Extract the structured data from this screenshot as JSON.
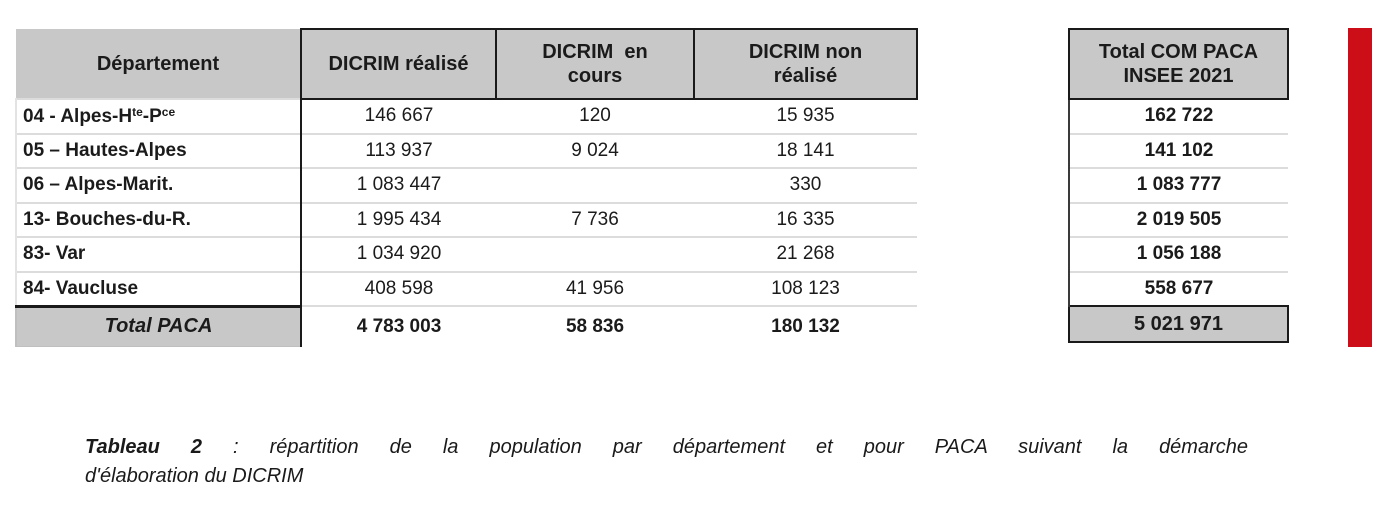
{
  "colors": {
    "accent_red": "#cb0e17",
    "header_gray": "#c8c8c8",
    "row_separator": "#dcdcdc",
    "text": "#1b1b1b"
  },
  "main_table": {
    "columns": [
      {
        "label_lines": [
          "Département"
        ]
      },
      {
        "label_lines": [
          "DICRIM réalisé"
        ]
      },
      {
        "label_lines": [
          "DICRIM  en",
          "cours"
        ]
      },
      {
        "label_lines": [
          "DICRIM non",
          "réalisé"
        ]
      }
    ],
    "rows": [
      {
        "dept_parts": [
          {
            "t": "04 - Alpes-H"
          },
          {
            "t": "te",
            "sup": true
          },
          {
            "t": "-P"
          },
          {
            "t": "ce",
            "sup": true
          }
        ],
        "realise": "146 667",
        "en_cours": "120",
        "non_realise": "15 935"
      },
      {
        "dept_parts": [
          {
            "t": "05 – Hautes-Alpes"
          }
        ],
        "realise": "113 937",
        "en_cours": "9 024",
        "non_realise": "18 141"
      },
      {
        "dept_parts": [
          {
            "t": "06 – Alpes-Marit."
          }
        ],
        "realise": "1 083 447",
        "en_cours": "",
        "non_realise": "330"
      },
      {
        "dept_parts": [
          {
            "t": "13- Bouches-du-R."
          }
        ],
        "realise": "1 995 434",
        "en_cours": "7 736",
        "non_realise": "16 335"
      },
      {
        "dept_parts": [
          {
            "t": "83- Var"
          }
        ],
        "realise": "1 034 920",
        "en_cours": "",
        "non_realise": "21 268"
      },
      {
        "dept_parts": [
          {
            "t": "84- Vaucluse"
          }
        ],
        "realise": "408 598",
        "en_cours": "41 956",
        "non_realise": "108 123"
      }
    ],
    "total_row": {
      "label": "Total PACA",
      "realise": "4 783 003",
      "en_cours": "58 836",
      "non_realise": "180 132"
    }
  },
  "insee_table": {
    "header_lines": [
      "Total COM PACA",
      "INSEE 2021"
    ],
    "values": [
      "162 722",
      "141 102",
      "1 083 777",
      "2 019 505",
      "1 056 188",
      "558 677"
    ],
    "total": "5 021 971"
  },
  "caption": {
    "label": "Tableau 2",
    "separator": ":",
    "line1_rest": "répartition de la population par département et pour PACA suivant la démarche",
    "line2": "d'élaboration du DICRIM"
  }
}
